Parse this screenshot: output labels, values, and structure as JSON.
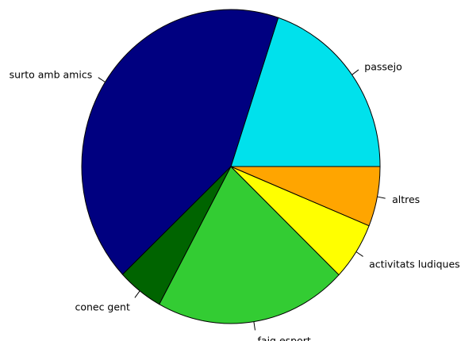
{
  "chart_data": {
    "type": "pie",
    "title": "",
    "start_angle_deg": 0,
    "direction": "counterclockwise",
    "labels": [
      "passejo",
      "surto amb amics",
      "conec gent",
      "faig esport",
      "activitats ludiques",
      "altres"
    ],
    "values": [
      20,
      42.5,
      5,
      21,
      6,
      6.2
    ],
    "colors": [
      "#00e1ec",
      "#000080",
      "#006400",
      "#33cc33",
      "#ffff00",
      "#ffa500"
    ]
  }
}
